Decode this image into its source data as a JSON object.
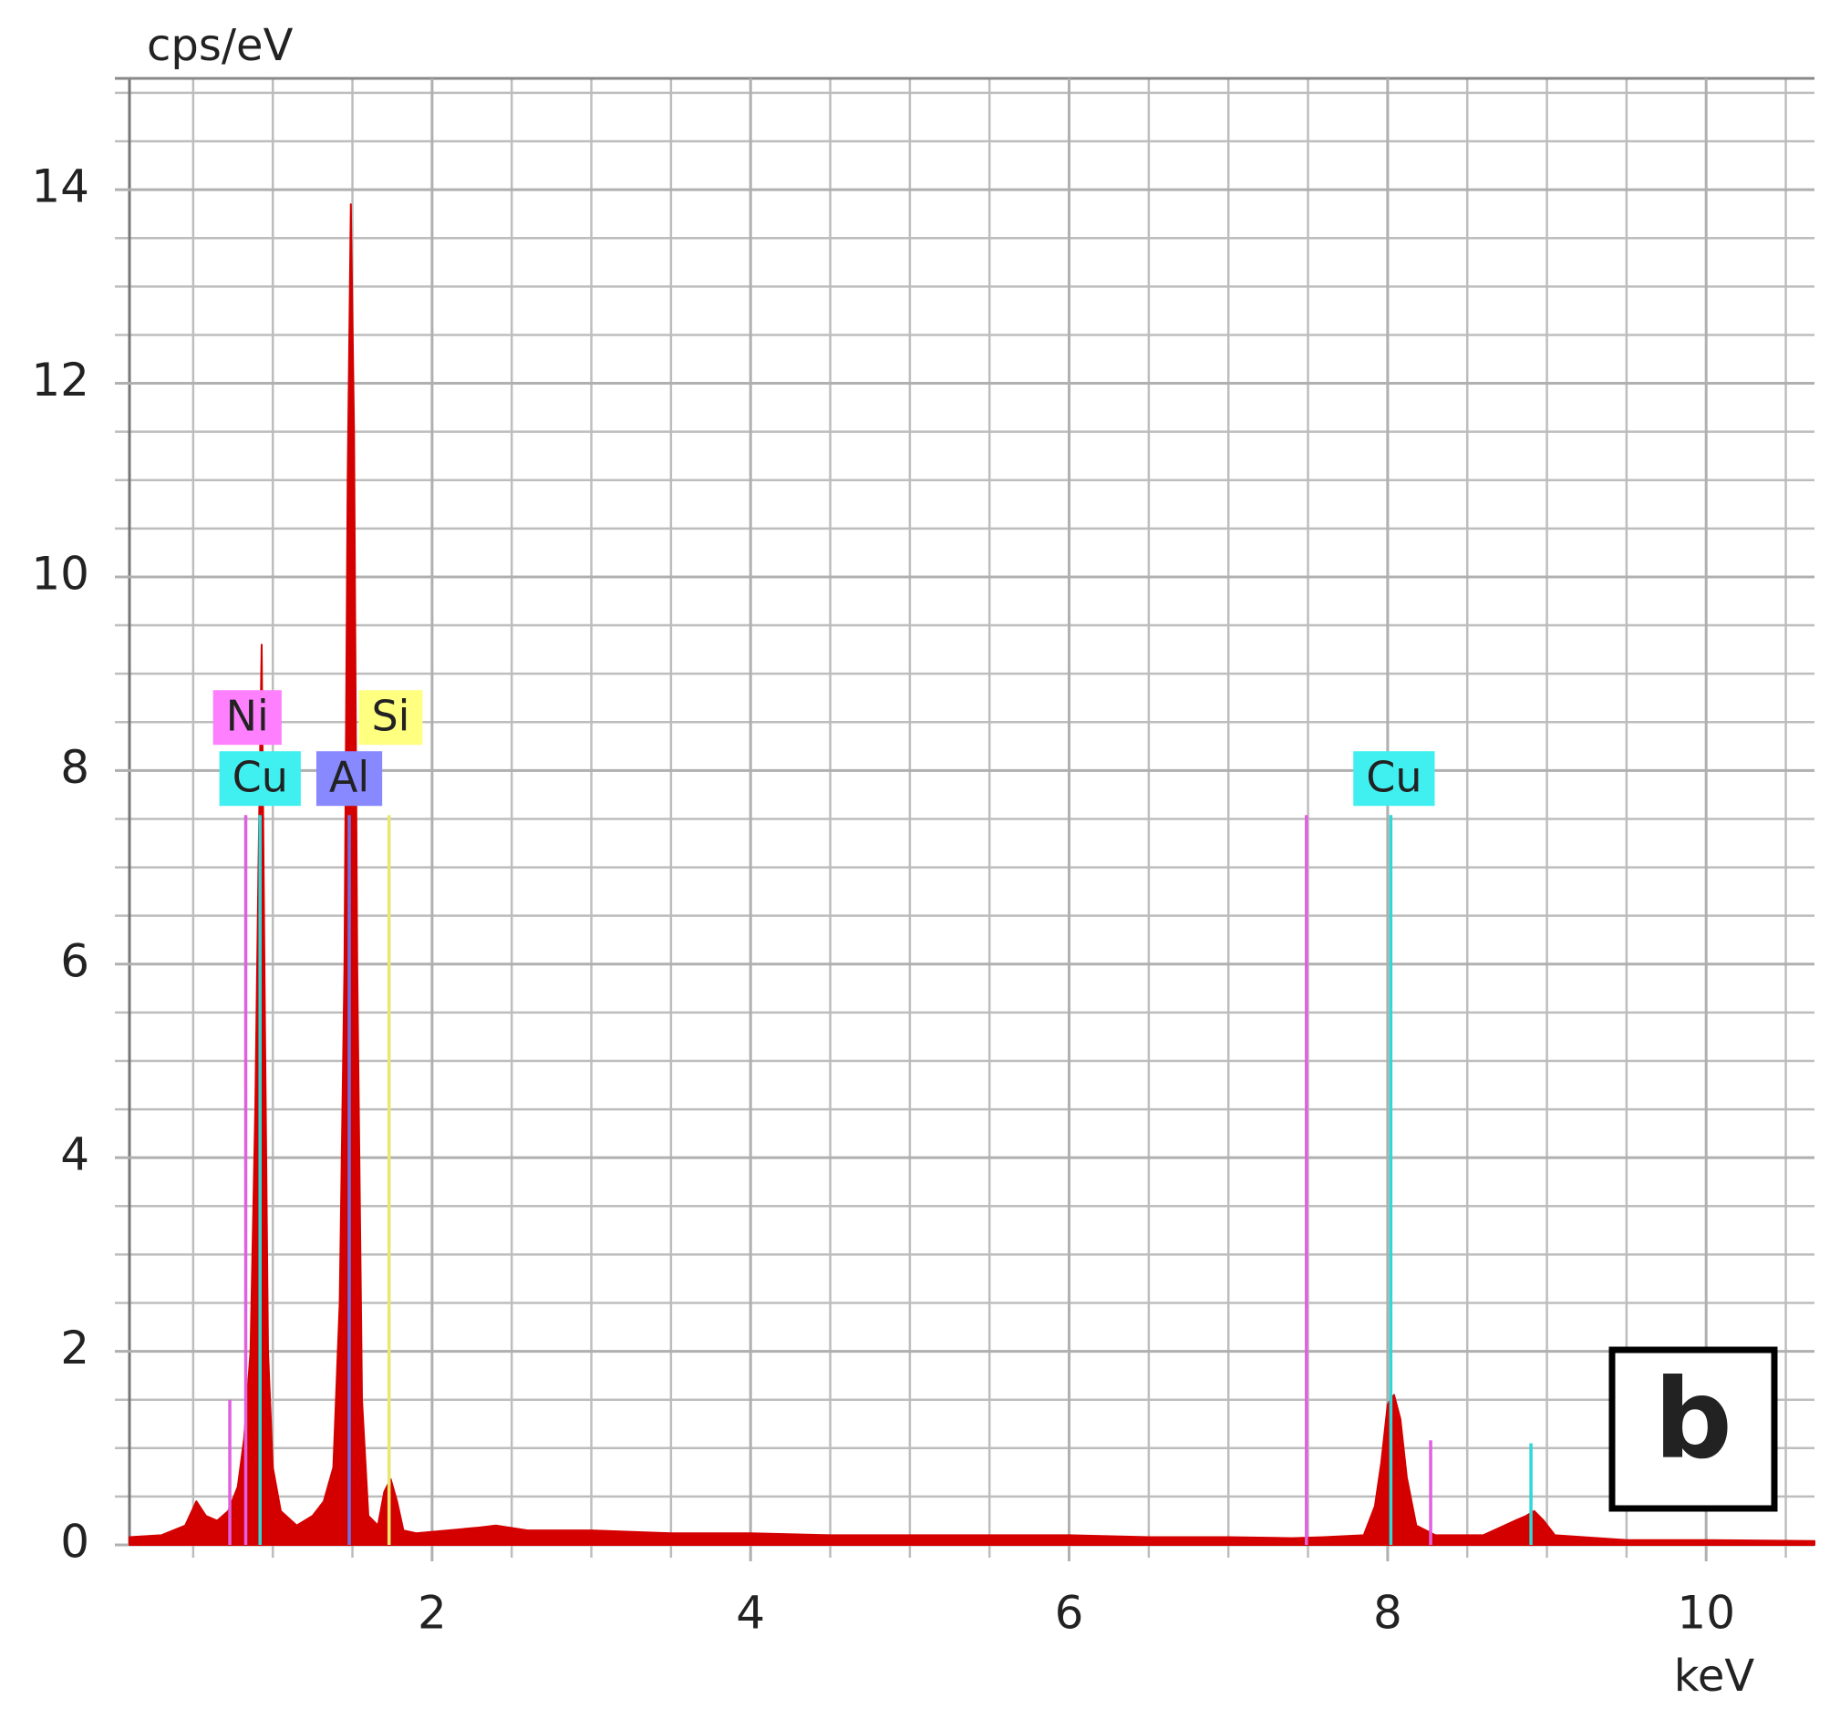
{
  "chart_data": {
    "type": "area",
    "y_label": "cps/eV",
    "x_label": "keV",
    "panel_label": "b",
    "xlim": [
      0.1,
      10.68
    ],
    "ylim": [
      0,
      15.15
    ],
    "xticks": [
      2,
      4,
      6,
      8,
      10
    ],
    "yticks": [
      0,
      2,
      4,
      6,
      8,
      10,
      12,
      14
    ],
    "grid": true,
    "xgrid": [
      0.5,
      1,
      1.5,
      2,
      2.5,
      3,
      3.5,
      4,
      4.5,
      5,
      5.5,
      6,
      6.5,
      7,
      7.5,
      8,
      8.5,
      9,
      9.5,
      10,
      10.5
    ],
    "ygrid": [
      0.5,
      1,
      1.5,
      2,
      2.5,
      3,
      3.5,
      4,
      4.5,
      5,
      5.5,
      6,
      6.5,
      7,
      7.5,
      8,
      8.5,
      9,
      9.5,
      10,
      10.5,
      11,
      11.5,
      12,
      12.5,
      13,
      13.5,
      14,
      14.5,
      15
    ],
    "x": [
      0.1,
      0.3,
      0.45,
      0.52,
      0.58,
      0.65,
      0.72,
      0.78,
      0.82,
      0.86,
      0.89,
      0.91,
      0.93,
      0.95,
      0.97,
      1.0,
      1.05,
      1.15,
      1.25,
      1.32,
      1.38,
      1.42,
      1.45,
      1.47,
      1.49,
      1.51,
      1.53,
      1.56,
      1.6,
      1.66,
      1.7,
      1.74,
      1.78,
      1.82,
      1.9,
      2.1,
      2.3,
      2.4,
      2.6,
      3.0,
      3.5,
      4.0,
      4.5,
      5.0,
      5.5,
      6.0,
      6.5,
      7.0,
      7.4,
      7.6,
      7.85,
      7.92,
      7.96,
      8.0,
      8.04,
      8.08,
      8.12,
      8.18,
      8.3,
      8.6,
      8.8,
      8.87,
      8.92,
      8.98,
      9.05,
      9.5,
      10.0,
      10.68
    ],
    "series": [
      {
        "color": "#d40000",
        "values": [
          0.08,
          0.1,
          0.2,
          0.45,
          0.3,
          0.25,
          0.35,
          0.6,
          1.1,
          2.0,
          4.5,
          7.0,
          9.3,
          5.5,
          2.0,
          0.8,
          0.35,
          0.2,
          0.3,
          0.45,
          0.8,
          2.5,
          6.0,
          11.0,
          13.85,
          11.5,
          6.0,
          1.5,
          0.3,
          0.2,
          0.55,
          0.68,
          0.45,
          0.15,
          0.12,
          0.15,
          0.18,
          0.2,
          0.15,
          0.15,
          0.12,
          0.12,
          0.1,
          0.1,
          0.1,
          0.1,
          0.08,
          0.08,
          0.07,
          0.08,
          0.1,
          0.4,
          0.85,
          1.45,
          1.55,
          1.3,
          0.7,
          0.2,
          0.1,
          0.1,
          0.25,
          0.3,
          0.35,
          0.25,
          0.1,
          0.05,
          0.05,
          0.04
        ]
      }
    ],
    "element_lines": [
      {
        "energy": 0.73,
        "height": 1.5,
        "color": "#e060e0"
      },
      {
        "energy": 0.83,
        "height": 7.54,
        "color": "#e060e0"
      },
      {
        "energy": 0.92,
        "height": 7.54,
        "color": "#30d8d8"
      },
      {
        "energy": 1.48,
        "height": 7.54,
        "color": "#7070e0"
      },
      {
        "energy": 1.73,
        "height": 7.54,
        "color": "#e8e870"
      },
      {
        "energy": 7.49,
        "height": 7.54,
        "color": "#e060e0"
      },
      {
        "energy": 8.02,
        "height": 7.54,
        "color": "#30d8d8"
      },
      {
        "energy": 8.27,
        "height": 1.08,
        "color": "#e060e0"
      },
      {
        "energy": 8.9,
        "height": 1.05,
        "color": "#30d8d8"
      }
    ],
    "labels": [
      {
        "text": "Cu",
        "energy": 0.92,
        "color": "#40f0f0"
      },
      {
        "text": "Ni",
        "energy": 0.84,
        "color": "#ff80ff"
      },
      {
        "text": "Al",
        "energy": 1.48,
        "color": "#8888ff"
      },
      {
        "text": "Si",
        "energy": 1.74,
        "color": "#ffff80"
      },
      {
        "text": "Cu",
        "energy": 8.04,
        "color": "#40f0f0"
      }
    ]
  }
}
